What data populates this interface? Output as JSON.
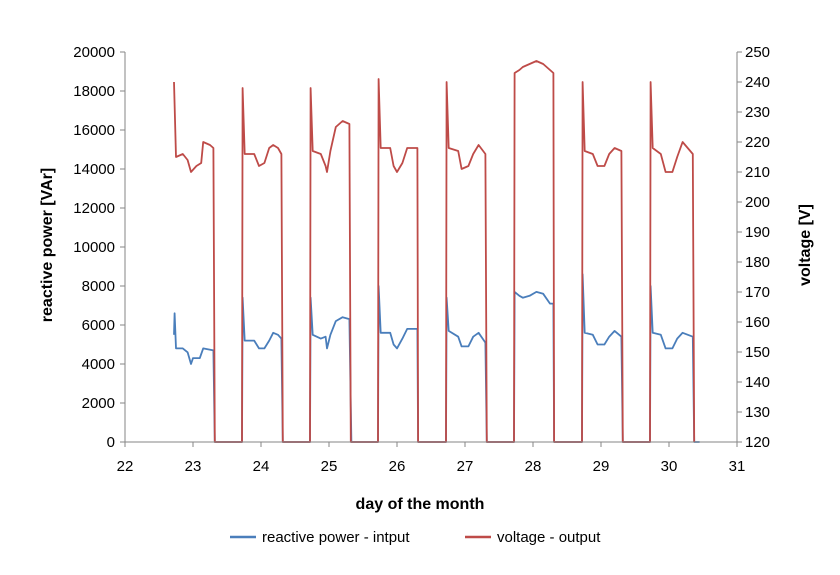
{
  "chart_data": {
    "type": "line",
    "xlabel": "day of the month",
    "ylabel_left": "reactive power [VAr]",
    "ylabel_right": "voltage [V]",
    "xlim": [
      22,
      31
    ],
    "ylim_left": [
      0,
      20000
    ],
    "ylim_right": [
      120,
      250
    ],
    "x_ticks": [
      22,
      23,
      24,
      25,
      26,
      27,
      28,
      29,
      30,
      31
    ],
    "y_ticks_left": [
      0,
      2000,
      4000,
      6000,
      8000,
      10000,
      12000,
      14000,
      16000,
      18000,
      20000
    ],
    "y_ticks_right": [
      120,
      130,
      140,
      150,
      160,
      170,
      180,
      190,
      200,
      210,
      220,
      230,
      240,
      250
    ],
    "grid": false,
    "legend_position": "bottom",
    "series": [
      {
        "name": "reactive power - intput",
        "axis": "left",
        "color": "#4a7ebb",
        "points": [
          [
            22.72,
            5500
          ],
          [
            22.73,
            6600
          ],
          [
            22.75,
            4800
          ],
          [
            22.85,
            4800
          ],
          [
            22.92,
            4600
          ],
          [
            22.97,
            4000
          ],
          [
            23.0,
            4300
          ],
          [
            23.05,
            4300
          ],
          [
            23.1,
            4300
          ],
          [
            23.15,
            4800
          ],
          [
            23.3,
            4700
          ],
          [
            23.32,
            0
          ],
          [
            23.72,
            0
          ],
          [
            23.73,
            7400
          ],
          [
            23.76,
            5200
          ],
          [
            23.9,
            5200
          ],
          [
            23.97,
            4800
          ],
          [
            24.05,
            4800
          ],
          [
            24.12,
            5200
          ],
          [
            24.18,
            5600
          ],
          [
            24.25,
            5500
          ],
          [
            24.3,
            5300
          ],
          [
            24.32,
            0
          ],
          [
            24.72,
            0
          ],
          [
            24.73,
            7400
          ],
          [
            24.76,
            5500
          ],
          [
            24.88,
            5300
          ],
          [
            24.95,
            5400
          ],
          [
            24.97,
            4800
          ],
          [
            25.02,
            5500
          ],
          [
            25.1,
            6200
          ],
          [
            25.2,
            6400
          ],
          [
            25.3,
            6300
          ],
          [
            25.32,
            1800
          ],
          [
            25.33,
            0
          ],
          [
            25.72,
            0
          ],
          [
            25.73,
            8000
          ],
          [
            25.76,
            5600
          ],
          [
            25.9,
            5600
          ],
          [
            25.95,
            5000
          ],
          [
            26.0,
            4800
          ],
          [
            26.08,
            5300
          ],
          [
            26.15,
            5800
          ],
          [
            26.3,
            5800
          ],
          [
            26.31,
            0
          ],
          [
            26.72,
            0
          ],
          [
            26.73,
            7400
          ],
          [
            26.76,
            5700
          ],
          [
            26.9,
            5400
          ],
          [
            26.95,
            4900
          ],
          [
            27.05,
            4900
          ],
          [
            27.12,
            5400
          ],
          [
            27.2,
            5600
          ],
          [
            27.3,
            5100
          ],
          [
            27.32,
            0
          ],
          [
            27.72,
            0
          ],
          [
            27.73,
            7700
          ],
          [
            27.8,
            7500
          ],
          [
            27.85,
            7400
          ],
          [
            27.95,
            7500
          ],
          [
            28.05,
            7700
          ],
          [
            28.15,
            7600
          ],
          [
            28.25,
            7100
          ],
          [
            28.3,
            7100
          ],
          [
            28.31,
            0
          ],
          [
            28.72,
            0
          ],
          [
            28.73,
            8600
          ],
          [
            28.76,
            5600
          ],
          [
            28.88,
            5500
          ],
          [
            28.95,
            5000
          ],
          [
            29.05,
            5000
          ],
          [
            29.12,
            5400
          ],
          [
            29.2,
            5700
          ],
          [
            29.3,
            5400
          ],
          [
            29.32,
            0
          ],
          [
            29.72,
            0
          ],
          [
            29.73,
            8000
          ],
          [
            29.76,
            5600
          ],
          [
            29.88,
            5500
          ],
          [
            29.95,
            4800
          ],
          [
            30.05,
            4800
          ],
          [
            30.12,
            5300
          ],
          [
            30.2,
            5600
          ],
          [
            30.35,
            5400
          ],
          [
            30.37,
            0
          ],
          [
            30.45,
            0
          ]
        ]
      },
      {
        "name": "voltage - output",
        "axis": "right",
        "color": "#be4b48",
        "points": [
          [
            22.72,
            240
          ],
          [
            22.75,
            215
          ],
          [
            22.85,
            216
          ],
          [
            22.92,
            214
          ],
          [
            22.97,
            210
          ],
          [
            23.05,
            212
          ],
          [
            23.12,
            213
          ],
          [
            23.15,
            220
          ],
          [
            23.25,
            219
          ],
          [
            23.3,
            218
          ],
          [
            23.32,
            120
          ],
          [
            23.72,
            120
          ],
          [
            23.73,
            238
          ],
          [
            23.76,
            216
          ],
          [
            23.9,
            216
          ],
          [
            23.97,
            212
          ],
          [
            24.05,
            213
          ],
          [
            24.12,
            218
          ],
          [
            24.18,
            219
          ],
          [
            24.25,
            218
          ],
          [
            24.3,
            216
          ],
          [
            24.32,
            120
          ],
          [
            24.72,
            120
          ],
          [
            24.73,
            238
          ],
          [
            24.76,
            217
          ],
          [
            24.88,
            216
          ],
          [
            24.95,
            212
          ],
          [
            24.97,
            210
          ],
          [
            25.02,
            217
          ],
          [
            25.1,
            225
          ],
          [
            25.2,
            227
          ],
          [
            25.3,
            226
          ],
          [
            25.32,
            120
          ],
          [
            25.72,
            120
          ],
          [
            25.73,
            241
          ],
          [
            25.76,
            218
          ],
          [
            25.9,
            218
          ],
          [
            25.95,
            212
          ],
          [
            26.0,
            210
          ],
          [
            26.08,
            213
          ],
          [
            26.15,
            218
          ],
          [
            26.3,
            218
          ],
          [
            26.31,
            120
          ],
          [
            26.72,
            120
          ],
          [
            26.73,
            240
          ],
          [
            26.76,
            218
          ],
          [
            26.9,
            217
          ],
          [
            26.95,
            211
          ],
          [
            27.05,
            212
          ],
          [
            27.12,
            216
          ],
          [
            27.2,
            219
          ],
          [
            27.3,
            216
          ],
          [
            27.32,
            120
          ],
          [
            27.72,
            120
          ],
          [
            27.73,
            243
          ],
          [
            27.8,
            244
          ],
          [
            27.85,
            245
          ],
          [
            27.95,
            246
          ],
          [
            28.05,
            247
          ],
          [
            28.15,
            246
          ],
          [
            28.25,
            244
          ],
          [
            28.3,
            243
          ],
          [
            28.31,
            120
          ],
          [
            28.72,
            120
          ],
          [
            28.73,
            240
          ],
          [
            28.76,
            217
          ],
          [
            28.88,
            216
          ],
          [
            28.95,
            212
          ],
          [
            29.05,
            212
          ],
          [
            29.12,
            216
          ],
          [
            29.2,
            218
          ],
          [
            29.3,
            217
          ],
          [
            29.32,
            120
          ],
          [
            29.72,
            120
          ],
          [
            29.73,
            240
          ],
          [
            29.76,
            218
          ],
          [
            29.88,
            216
          ],
          [
            29.95,
            210
          ],
          [
            30.05,
            210
          ],
          [
            30.12,
            215
          ],
          [
            30.2,
            220
          ],
          [
            30.35,
            216
          ],
          [
            30.37,
            120
          ]
        ]
      }
    ]
  }
}
